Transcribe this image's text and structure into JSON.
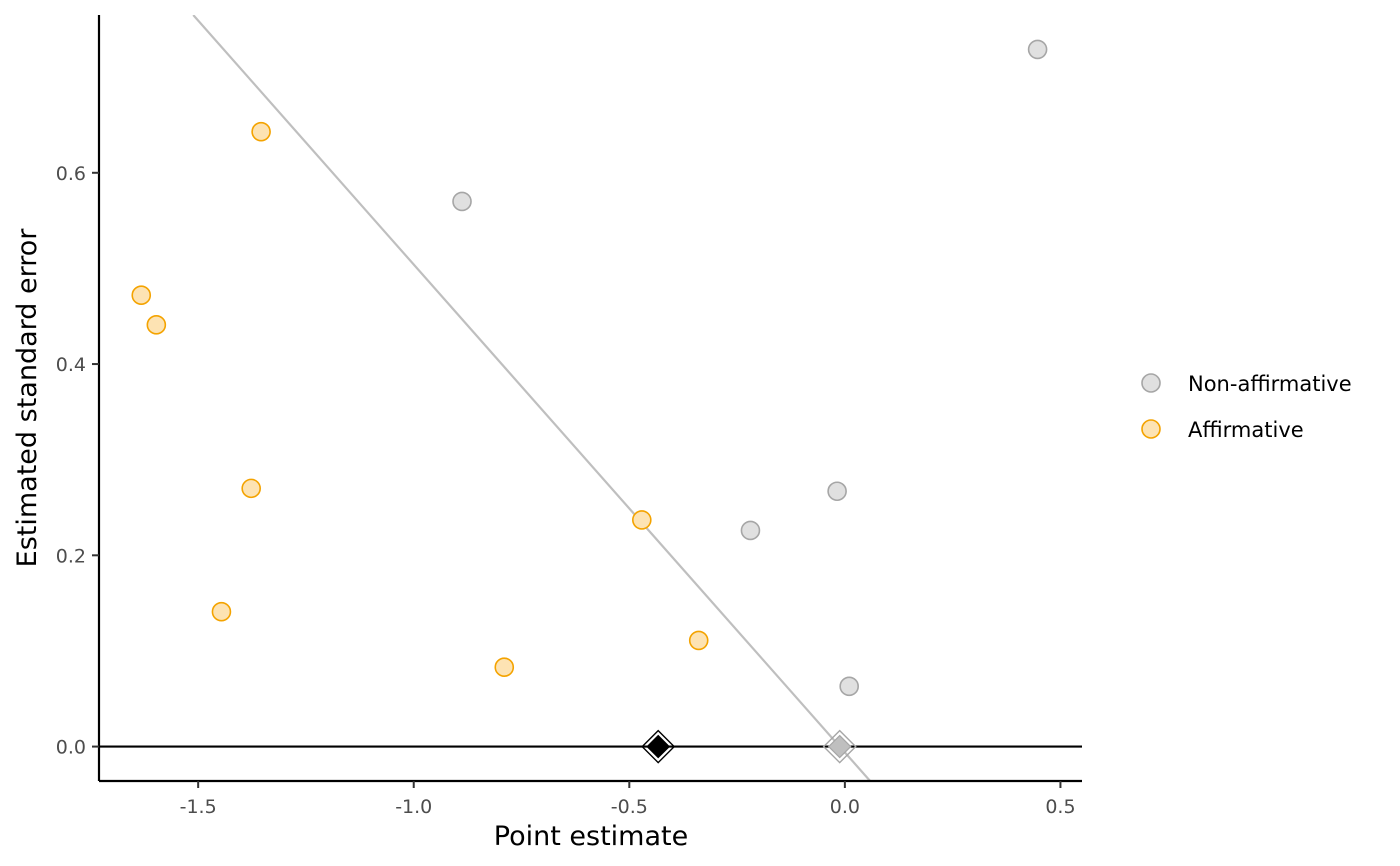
{
  "chart_data": {
    "type": "scatter",
    "title": "",
    "xlabel": "Point estimate",
    "ylabel": "Estimated standard error",
    "xlim": [
      -1.73,
      0.55
    ],
    "ylim": [
      -0.036,
      0.765
    ],
    "x_ticks": [
      {
        "value": -1.5,
        "label": "-1.5"
      },
      {
        "value": -1.0,
        "label": "-1.0"
      },
      {
        "value": -0.5,
        "label": "-0.5"
      },
      {
        "value": 0.0,
        "label": "0.0"
      },
      {
        "value": 0.5,
        "label": "0.5"
      }
    ],
    "y_ticks": [
      {
        "value": 0.0,
        "label": "0.0"
      },
      {
        "value": 0.2,
        "label": "0.2"
      },
      {
        "value": 0.4,
        "label": "0.4"
      },
      {
        "value": 0.6,
        "label": "0.6"
      }
    ],
    "grid": false,
    "legend_position": "right",
    "series": [
      {
        "name": "Non-affirmative",
        "fill": "#e0e0e0",
        "stroke": "#a6a6a6",
        "points": [
          {
            "x": 0.447,
            "y": 0.729
          },
          {
            "x": -0.888,
            "y": 0.57
          },
          {
            "x": -0.018,
            "y": 0.267
          },
          {
            "x": -0.219,
            "y": 0.226
          },
          {
            "x": 0.01,
            "y": 0.063
          }
        ]
      },
      {
        "name": "Affirmative",
        "fill": "#fde3b3",
        "stroke": "#f4a300",
        "points": [
          {
            "x": -1.354,
            "y": 0.643
          },
          {
            "x": -1.632,
            "y": 0.472
          },
          {
            "x": -1.597,
            "y": 0.441
          },
          {
            "x": -1.377,
            "y": 0.27
          },
          {
            "x": -0.471,
            "y": 0.237
          },
          {
            "x": -1.446,
            "y": 0.141
          },
          {
            "x": -0.339,
            "y": 0.111
          },
          {
            "x": -0.79,
            "y": 0.083
          }
        ]
      }
    ],
    "reference_line": {
      "x_intercept_at_zero_se": -0.012,
      "slope_x_per_se": -1.96,
      "color": "#bfbfbf"
    },
    "zero_line": {
      "y": 0.0,
      "color": "#000000"
    },
    "estimates": [
      {
        "x": -0.433,
        "y": 0.0,
        "fill": "#000000",
        "stroke": "#000000"
      },
      {
        "x": -0.012,
        "y": 0.0,
        "fill": "#bfbfbf",
        "stroke": "#a6a6a6"
      }
    ]
  }
}
